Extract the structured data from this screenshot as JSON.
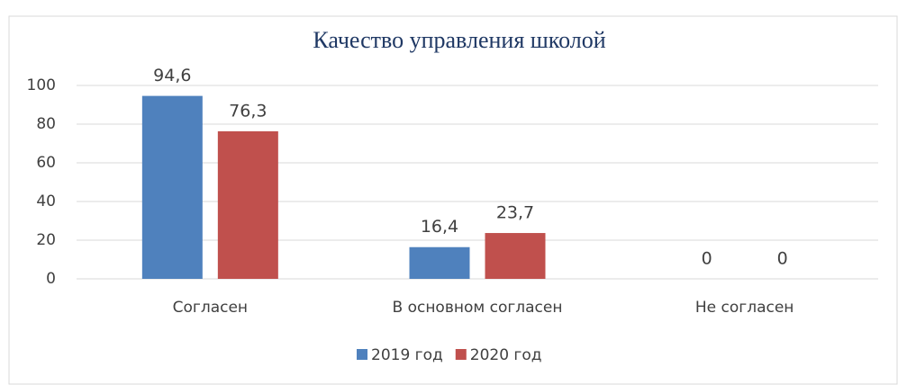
{
  "chart_data": {
    "type": "bar",
    "title": "Качество управления школой",
    "categories": [
      "Согласен",
      "В основном согласен",
      "Не согласен"
    ],
    "series": [
      {
        "name": "2019 год",
        "color": "#4f81bd",
        "values": [
          94.6,
          16.4,
          0
        ],
        "value_labels": [
          "94,6",
          "16,4",
          "0"
        ]
      },
      {
        "name": "2020 год",
        "color": "#c0504d",
        "values": [
          76.3,
          23.7,
          0
        ],
        "value_labels": [
          "76,3",
          "23,7",
          "0"
        ]
      }
    ],
    "ylim": [
      0,
      100
    ],
    "yticks": [
      0,
      20,
      40,
      60,
      80,
      100
    ],
    "grid": true,
    "legend": "bottom"
  }
}
